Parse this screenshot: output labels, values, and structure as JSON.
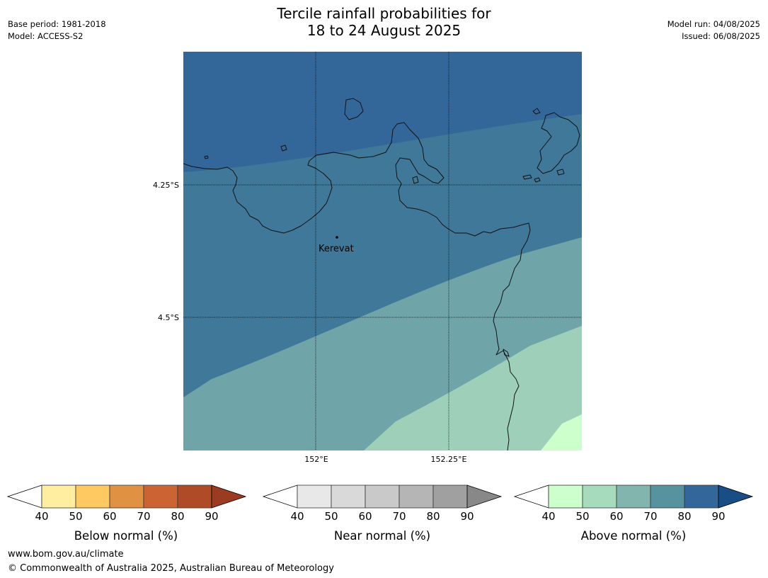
{
  "title": {
    "line1": "Tercile rainfall probabilities for",
    "line2": "18 to 24 August 2025"
  },
  "meta_left": {
    "base_period": "Base period: 1981-2018",
    "model": "Model: ACCESS-S2"
  },
  "meta_right": {
    "model_run": "Model run: 04/08/2025",
    "issued": "Issued: 06/08/2025"
  },
  "map": {
    "lat_labels": [
      "4.25°S",
      "4.5°S"
    ],
    "lon_labels": [
      "152°E",
      "152.25°E"
    ],
    "place": "Kerevat",
    "band_colors": [
      "#33679a",
      "#3f7898",
      "#6fa5a8",
      "#9ed0b9",
      "#ccffcc"
    ]
  },
  "colorbars": [
    {
      "label": "Below normal (%)",
      "ticks": [
        "40",
        "50",
        "60",
        "70",
        "80",
        "90"
      ],
      "colors": [
        "#ffeda0",
        "#fec961",
        "#e09142",
        "#cc6333",
        "#b04b27"
      ],
      "extend_color": "#9a3b22"
    },
    {
      "label": "Near normal (%)",
      "ticks": [
        "40",
        "50",
        "60",
        "70",
        "80",
        "90"
      ],
      "colors": [
        "#e8e8e8",
        "#d9d9d9",
        "#c9c9c9",
        "#b5b5b5",
        "#a0a0a0"
      ],
      "extend_color": "#888888"
    },
    {
      "label": "Above normal (%)",
      "ticks": [
        "40",
        "50",
        "60",
        "70",
        "80",
        "90"
      ],
      "colors": [
        "#ccffcc",
        "#a6dbbd",
        "#81b5ad",
        "#57929f",
        "#33679a"
      ],
      "extend_color": "#184e85"
    }
  ],
  "footer": {
    "url": "www.bom.gov.au/climate",
    "copyright": "© Commonwealth of Australia 2025, Australian Bureau of Meteorology"
  }
}
